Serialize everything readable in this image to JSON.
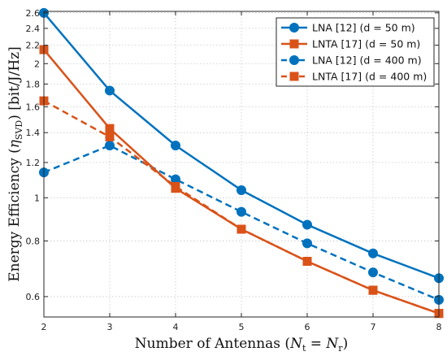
{
  "chart_data": {
    "type": "line",
    "xlabel": "Number of Antennas (N_t = N_r)",
    "ylabel": "Energy Efficiency (η_SVD) [bit/J/Hz]",
    "xlim": [
      2,
      8
    ],
    "ylim": [
      0.54,
      2.62
    ],
    "yscale": "log",
    "grid": true,
    "legend_position": "top-right",
    "x": [
      2,
      3,
      4,
      5,
      6,
      7,
      8
    ],
    "x_ticks": [
      "2",
      "3",
      "4",
      "5",
      "6",
      "7",
      "8"
    ],
    "y_ticks": [
      {
        "value": 0.6,
        "label": "0.6"
      },
      {
        "value": 0.8,
        "label": "0.8"
      },
      {
        "value": 1.0,
        "label": "1"
      },
      {
        "value": 1.2,
        "label": "1.2"
      },
      {
        "value": 1.4,
        "label": "1.4"
      },
      {
        "value": 1.6,
        "label": "1.6"
      },
      {
        "value": 1.8,
        "label": "1.8"
      },
      {
        "value": 2.0,
        "label": "2"
      },
      {
        "value": 2.2,
        "label": "2.2"
      },
      {
        "value": 2.4,
        "label": "2.4"
      },
      {
        "value": 2.6,
        "label": "2.6"
      }
    ],
    "series": [
      {
        "name": "LNA [12] (d = 50 m)",
        "values": [
          2.6,
          1.74,
          1.31,
          1.04,
          0.87,
          0.75,
          0.66
        ],
        "color": "#0072BD",
        "marker": "circle",
        "dash": "solid"
      },
      {
        "name": "LNTA [17] (d = 50 m)",
        "values": [
          2.15,
          1.43,
          1.05,
          0.85,
          0.72,
          0.62,
          0.55
        ],
        "color": "#D95319",
        "marker": "square",
        "dash": "solid"
      },
      {
        "name": "LNA [12] (d = 400 m)",
        "values": [
          1.14,
          1.31,
          1.1,
          0.93,
          0.79,
          0.68,
          0.59
        ],
        "color": "#0072BD",
        "marker": "circle",
        "dash": "dashed"
      },
      {
        "name": "LNTA [17] (d = 400 m)",
        "values": [
          1.65,
          1.37,
          1.06,
          0.85,
          0.72,
          0.62,
          0.55
        ],
        "color": "#D95319",
        "marker": "square",
        "dash": "dashed"
      }
    ]
  }
}
